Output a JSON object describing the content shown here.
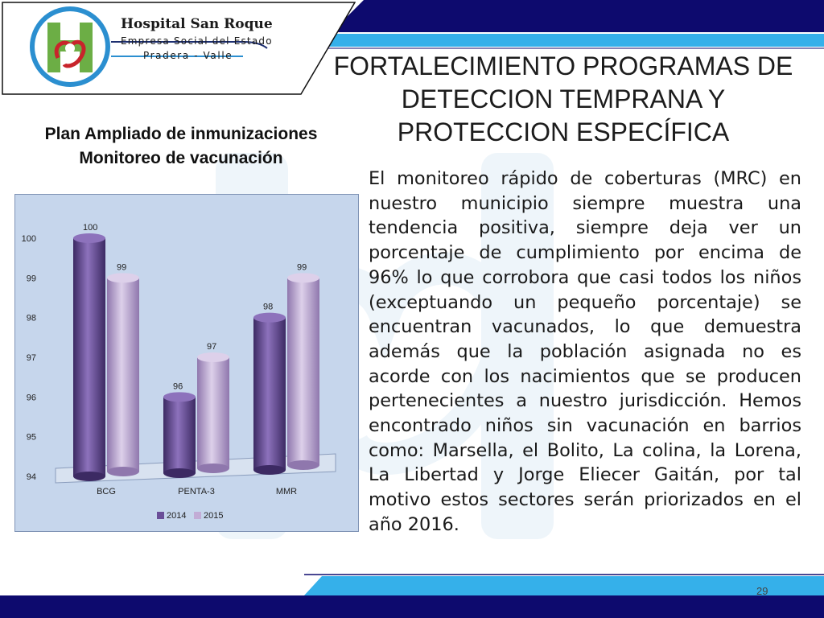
{
  "logo": {
    "name": "Hospital San Roque",
    "subtitle": "Empresa Social del Estado",
    "location": "Pradera - Valle"
  },
  "slide": {
    "title_lines": [
      "FORTALECIMIENTO PROGRAMAS DE",
      "DETECCION TEMPRANA Y",
      "PROTECCION ESPECÍFICA"
    ],
    "section_title_lines": [
      "Plan Ampliado de inmunizaciones",
      "Monitoreo de vacunación"
    ],
    "body_text": "El monitoreo rápido de coberturas (MRC) en nuestro municipio siempre muestra una tendencia positiva, siempre deja ver un porcentaje de cumplimiento por encima de 96% lo que corrobora que casi todos los niños (exceptuando un pequeño porcentaje) se encuentran vacunados, lo que demuestra además que la población asignada no es acorde con los nacimientos que se producen pertenecientes a nuestro jurisdicción. Hemos encontrado niños sin vacunación en barrios como: Marsella, el Bolito, La colina, la Lorena, La Libertad y Jorge Eliecer Gaitán, por tal motivo estos sectores serán priorizados en el año 2016.",
    "page_number": "29"
  },
  "colors": {
    "navy": "#0d0a6e",
    "light_blue": "#35b0ea",
    "series_2014": "#6a4e98",
    "series_2015": "#c2acd6",
    "chart_bg": "#c6d6ec"
  },
  "chart_data": {
    "type": "bar",
    "categories": [
      "BCG",
      "PENTA-3",
      "MMR"
    ],
    "series": [
      {
        "name": "2014",
        "values": [
          100,
          96,
          98
        ]
      },
      {
        "name": "2015",
        "values": [
          99,
          97,
          99
        ]
      }
    ],
    "title": "",
    "xlabel": "",
    "ylabel": "",
    "ylim": [
      94,
      100
    ],
    "yticks": [
      94,
      95,
      96,
      97,
      98,
      99,
      100
    ],
    "data_labels": true,
    "legend": "bottom",
    "grid": false,
    "style": "3d-cylinder"
  }
}
